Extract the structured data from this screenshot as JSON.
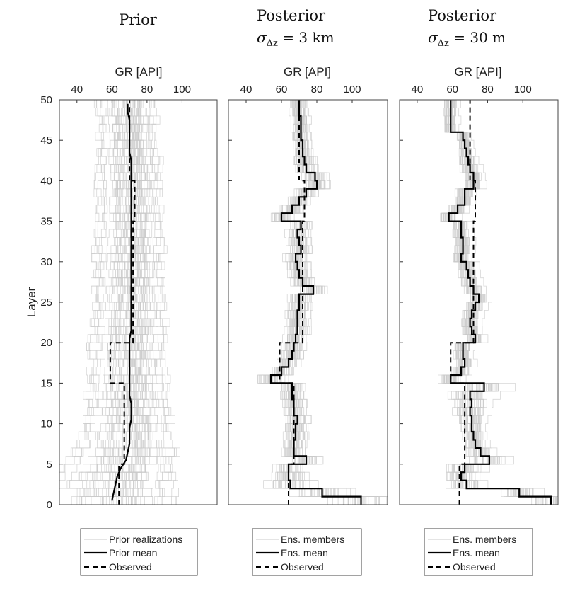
{
  "chart_data": [
    {
      "type": "line",
      "title": "Prior",
      "xlabel": "GR [API]",
      "ylabel": "Layer",
      "xlim": [
        30,
        120
      ],
      "ylim": [
        0,
        50
      ],
      "xticks": [
        40,
        60,
        80,
        100
      ],
      "yticks": [
        0,
        5,
        10,
        15,
        20,
        25,
        30,
        35,
        40,
        45,
        50
      ],
      "legend": [
        "Prior realizations",
        "Prior mean",
        "Observed"
      ],
      "legend_position": "bottom",
      "mean_label": "Prior mean",
      "observed_label": "Observed",
      "ensemble_label": "Prior realizations",
      "mean": [
        60,
        61,
        62,
        63,
        65,
        68,
        69,
        70,
        70,
        70,
        71,
        71,
        71,
        70,
        70,
        70,
        70,
        70,
        70,
        70,
        70,
        71,
        71,
        71,
        71,
        71,
        71,
        71,
        71,
        71,
        71,
        71,
        71,
        71,
        71,
        71,
        71,
        71,
        71,
        71,
        71,
        71,
        71,
        70,
        70,
        70,
        70,
        70,
        69,
        69
      ],
      "observed": [
        64,
        64,
        64,
        64,
        64,
        67,
        67,
        67,
        67,
        67,
        67,
        67,
        67,
        67,
        67,
        59,
        59,
        59,
        59,
        59,
        72,
        72,
        72,
        72,
        72,
        72,
        72,
        72,
        72,
        72,
        72,
        72,
        72,
        72,
        72,
        73,
        73,
        73,
        73,
        73,
        70,
        70,
        70,
        70,
        70,
        70,
        70,
        70,
        70,
        70
      ],
      "ensemble_spread": [
        25,
        25,
        24,
        23,
        22,
        20,
        19,
        18,
        17,
        17,
        16,
        16,
        15,
        15,
        15,
        15,
        14,
        14,
        14,
        14,
        14,
        14,
        14,
        13,
        13,
        13,
        13,
        13,
        13,
        13,
        13,
        13,
        12,
        12,
        12,
        12,
        12,
        12,
        12,
        12,
        12,
        12,
        12,
        12,
        11,
        11,
        11,
        11,
        11,
        11
      ]
    },
    {
      "type": "line",
      "title": "Posterior",
      "subtitle_math": {
        "symbol": "σ",
        "sub": "Δz",
        "value": "3 km"
      },
      "xlabel": "GR [API]",
      "ylabel": "Layer",
      "xlim": [
        30,
        120
      ],
      "ylim": [
        0,
        50
      ],
      "xticks": [
        40,
        60,
        80,
        100
      ],
      "yticks": [
        0,
        5,
        10,
        15,
        20,
        25,
        30,
        35,
        40,
        45,
        50
      ],
      "legend": [
        "Ens. members",
        "Ens. mean",
        "Observed"
      ],
      "legend_position": "bottom",
      "mean_label": "Ens. mean",
      "observed_label": "Observed",
      "ensemble_label": "Ens. members",
      "mean": [
        105,
        83,
        65,
        64,
        64,
        74,
        67,
        67,
        68,
        68,
        69,
        67,
        67,
        66,
        66,
        54,
        60,
        64,
        66,
        67,
        68,
        69,
        69,
        69,
        70,
        70,
        78,
        72,
        70,
        69,
        68,
        71,
        70,
        69,
        71,
        60,
        66,
        70,
        74,
        80,
        79,
        74,
        73,
        72,
        72,
        71,
        71,
        71,
        70,
        70
      ],
      "observed": [
        64,
        64,
        64,
        64,
        64,
        67,
        67,
        67,
        67,
        67,
        67,
        67,
        67,
        67,
        67,
        59,
        59,
        59,
        59,
        59,
        72,
        72,
        72,
        72,
        72,
        72,
        72,
        72,
        72,
        72,
        72,
        72,
        72,
        72,
        72,
        73,
        73,
        73,
        73,
        73,
        70,
        70,
        70,
        70,
        70,
        70,
        70,
        70,
        70,
        70
      ],
      "ensemble_spread": [
        12,
        10,
        8,
        6,
        5,
        5,
        4,
        4,
        4,
        4,
        4,
        4,
        4,
        4,
        4,
        5,
        4,
        4,
        4,
        4,
        4,
        4,
        4,
        4,
        4,
        4,
        4,
        4,
        4,
        4,
        4,
        4,
        4,
        4,
        4,
        4,
        4,
        4,
        4,
        4,
        4,
        4,
        4,
        3,
        3,
        3,
        3,
        3,
        3,
        3
      ]
    },
    {
      "type": "line",
      "title": "Posterior",
      "subtitle_math": {
        "symbol": "σ",
        "sub": "Δz",
        "value": "30 m"
      },
      "xlabel": "GR [API]",
      "ylabel": "Layer",
      "xlim": [
        30,
        120
      ],
      "ylim": [
        0,
        50
      ],
      "xticks": [
        40,
        60,
        80,
        100
      ],
      "yticks": [
        0,
        5,
        10,
        15,
        20,
        25,
        30,
        35,
        40,
        45,
        50
      ],
      "legend": [
        "Ens. members",
        "Ens. mean",
        "Observed"
      ],
      "legend_position": "bottom",
      "mean_label": "Ens. mean",
      "observed_label": "Observed",
      "ensemble_label": "Ens. members",
      "mean": [
        116,
        98,
        68,
        65,
        67,
        81,
        76,
        73,
        72,
        71,
        71,
        70,
        71,
        70,
        78,
        59,
        65,
        67,
        66,
        66,
        73,
        71,
        70,
        71,
        73,
        75,
        72,
        70,
        69,
        68,
        65,
        66,
        66,
        65,
        65,
        58,
        63,
        67,
        67,
        72,
        72,
        70,
        69,
        68,
        67,
        66,
        59,
        59,
        59,
        59
      ],
      "observed": [
        64,
        64,
        64,
        64,
        64,
        67,
        67,
        67,
        67,
        67,
        67,
        67,
        67,
        67,
        67,
        59,
        59,
        59,
        59,
        59,
        72,
        72,
        72,
        72,
        72,
        72,
        72,
        72,
        72,
        72,
        72,
        72,
        72,
        72,
        72,
        73,
        73,
        73,
        73,
        73,
        70,
        70,
        70,
        70,
        70,
        70,
        70,
        70,
        70,
        70
      ],
      "ensemble_spread": [
        8,
        8,
        8,
        7,
        8,
        8,
        6,
        5,
        5,
        5,
        6,
        7,
        8,
        9,
        9,
        5,
        4,
        4,
        4,
        4,
        4,
        4,
        4,
        4,
        4,
        4,
        4,
        4,
        4,
        4,
        4,
        4,
        4,
        4,
        4,
        4,
        4,
        4,
        4,
        4,
        4,
        4,
        4,
        3,
        3,
        3,
        3,
        3,
        3,
        3
      ]
    }
  ]
}
